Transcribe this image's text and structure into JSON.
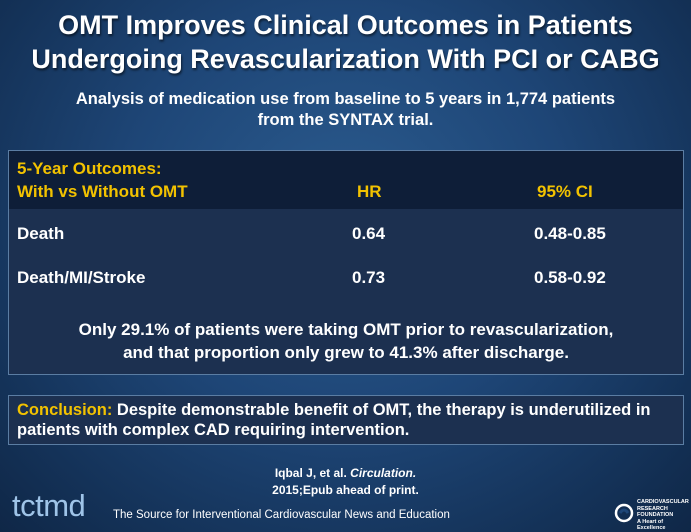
{
  "slide": {
    "title_line1": "OMT Improves Clinical Outcomes in Patients",
    "title_line2": "Undergoing Revascularization With PCI or CABG",
    "subtitle_line1": "Analysis of medication use from baseline to 5 years in 1,774 patients",
    "subtitle_line2": "from the SYNTAX trial."
  },
  "table": {
    "header_line1": "5-Year Outcomes:",
    "header_line2": "With vs Without OMT",
    "col_hr": "HR",
    "col_ci": "95% CI",
    "rows": [
      {
        "label": "Death",
        "hr": "0.64",
        "ci": "0.48-0.85"
      },
      {
        "label": "Death/MI/Stroke",
        "hr": "0.73",
        "ci": "0.58-0.92"
      }
    ],
    "note_line1": "Only 29.1% of patients were taking OMT prior to revascularization,",
    "note_line2": "and that proportion only grew to 41.3% after discharge."
  },
  "conclusion": {
    "label": "Conclusion:",
    "text": " Despite demonstrable benefit of OMT, the therapy is underutilized in patients with complex CAD requiring intervention."
  },
  "citation": {
    "authors": "Iqbal J, et al. ",
    "journal": "Circulation.",
    "line2": "2015;Epub ahead of print."
  },
  "footer": {
    "logo": "tctmd",
    "tagline": "The Source for Interventional Cardiovascular News and Education",
    "crf_line1": "CARDIOVASCULAR",
    "crf_line2": "RESEARCH",
    "crf_line3": "FOUNDATION",
    "crf_line4": "A Heart of Excellence"
  },
  "colors": {
    "accent_yellow": "#f2c200",
    "background_blue": "#1e4677",
    "header_dark": "#0e1e38"
  }
}
